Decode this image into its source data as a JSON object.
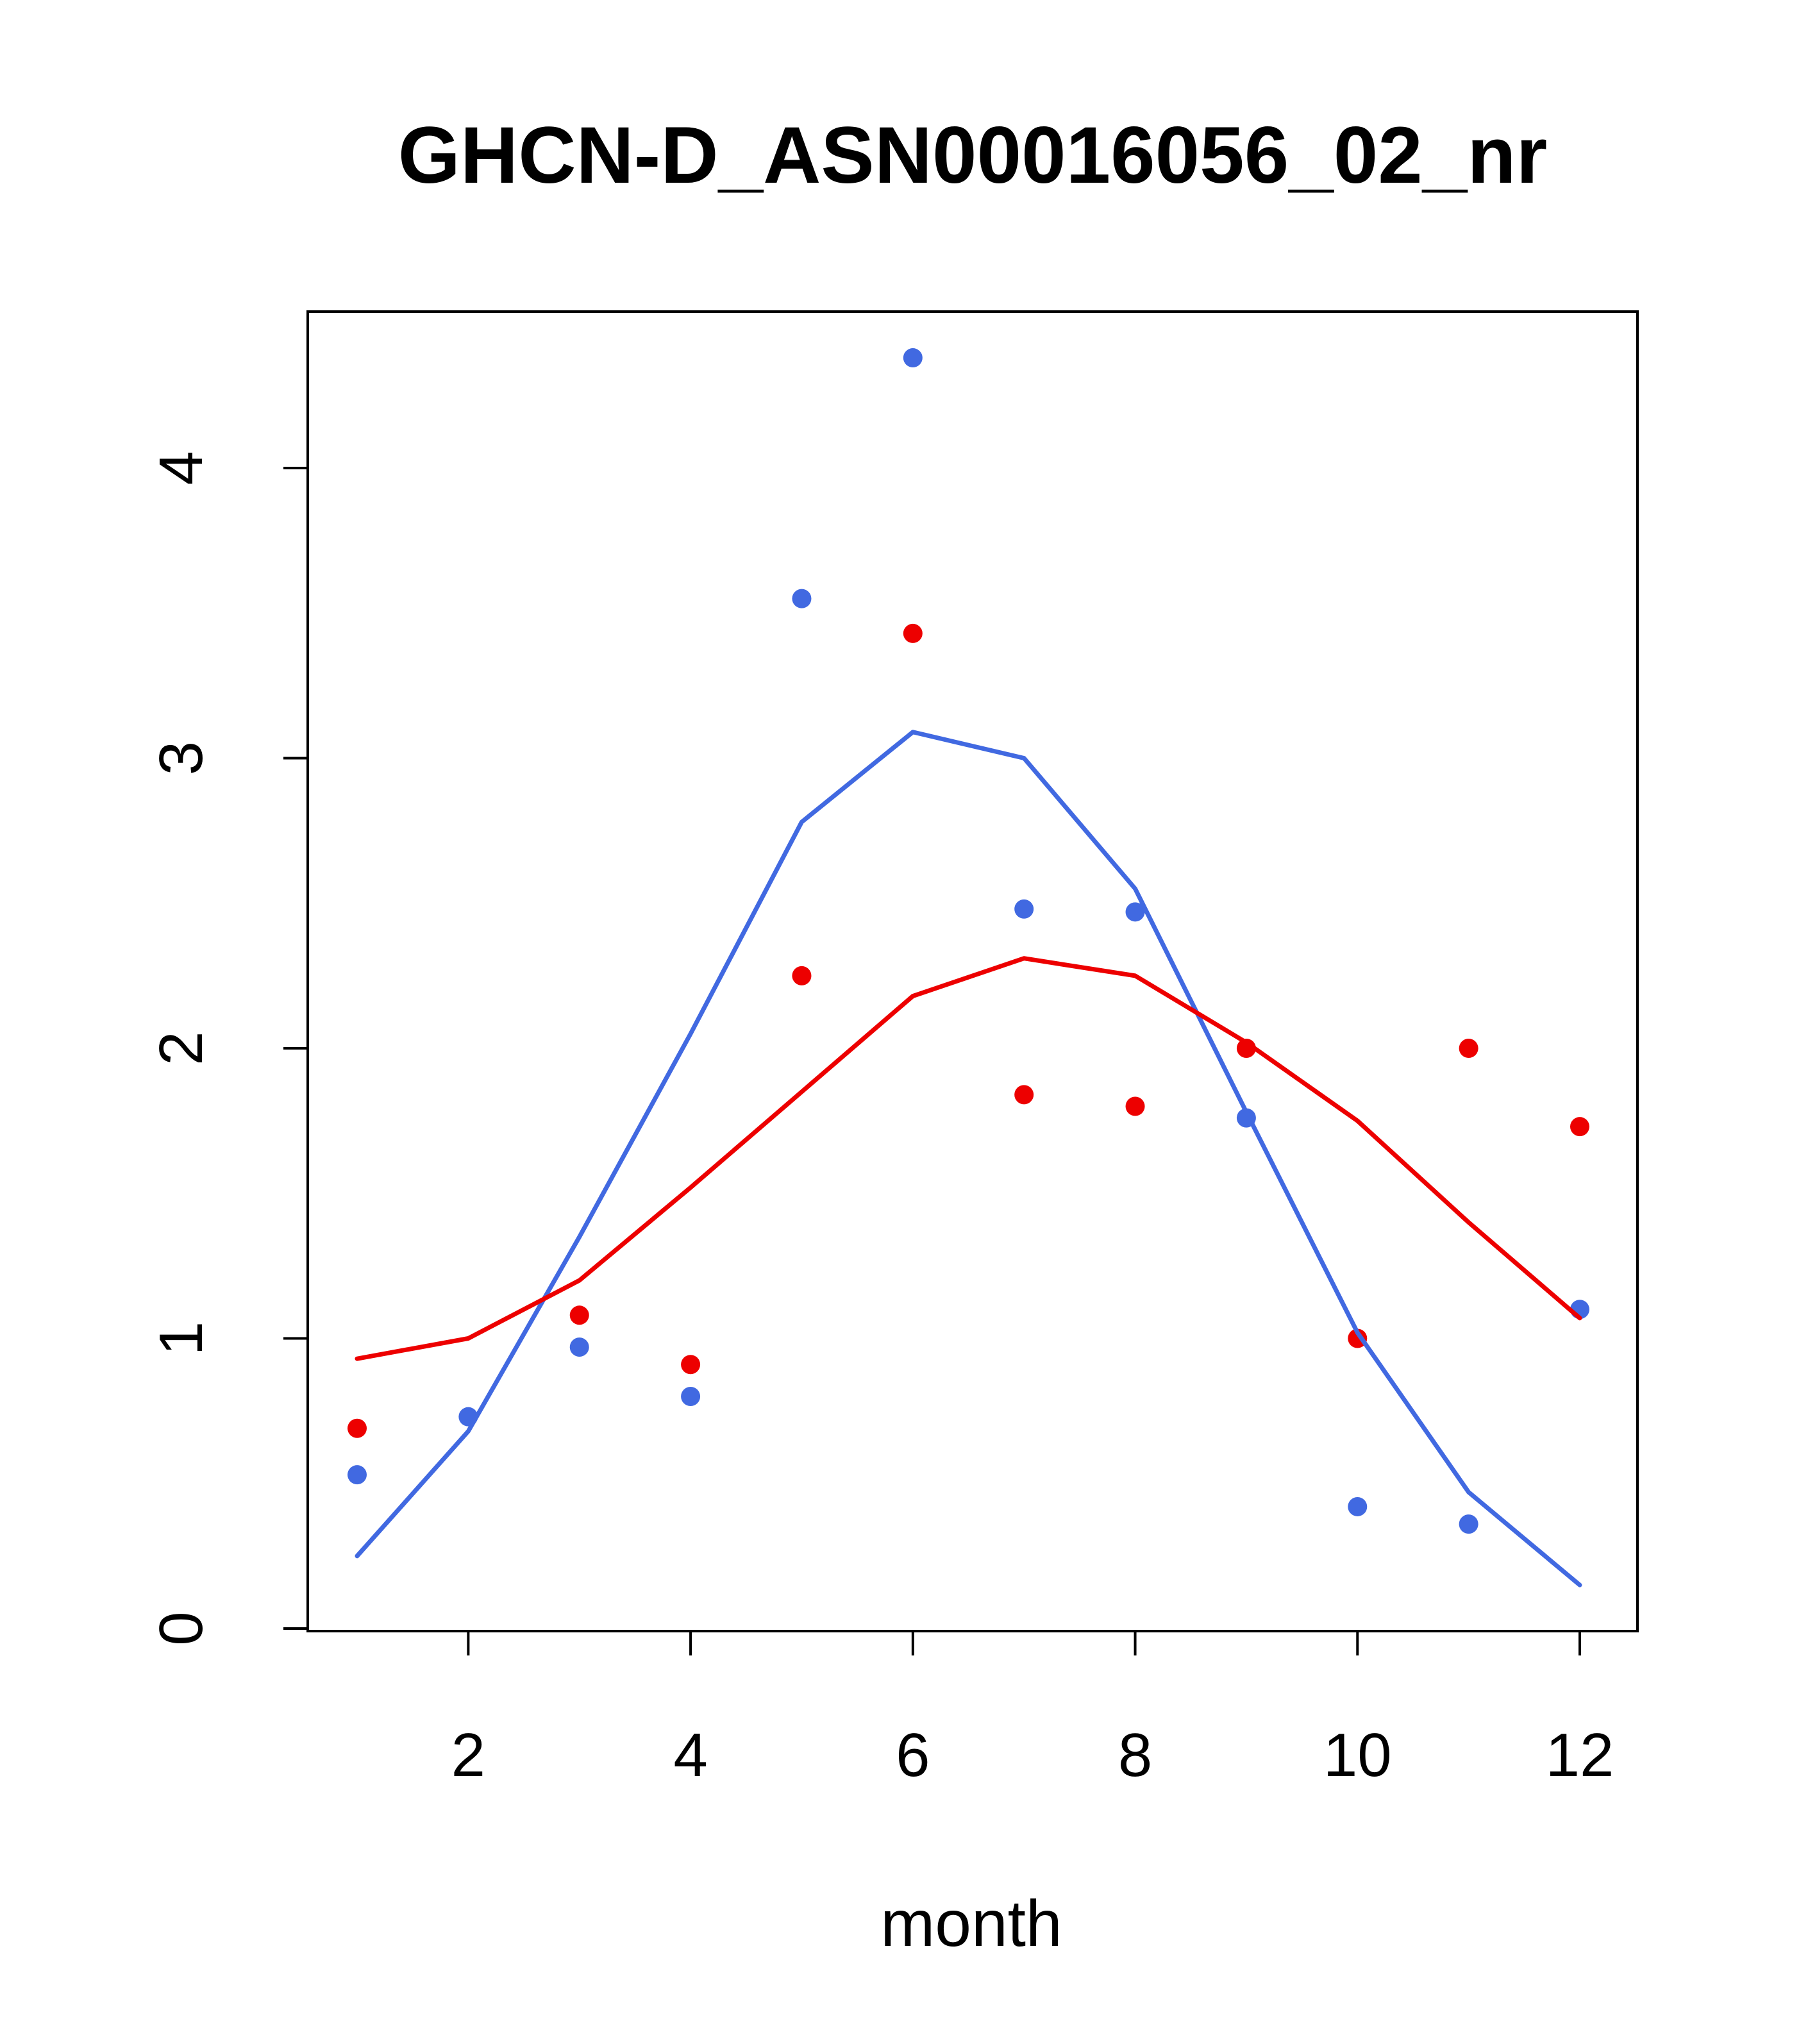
{
  "chart_data": {
    "type": "scatter",
    "title": "GHCN-D_ASN00016056_02_nr",
    "xlabel": "month",
    "ylabel": "",
    "x_ticks": [
      2,
      4,
      6,
      8,
      10,
      12
    ],
    "y_ticks": [
      0,
      1,
      2,
      3,
      4
    ],
    "xlim": [
      0.56,
      12.44
    ],
    "ylim": [
      -0.01,
      4.55
    ],
    "grid": false,
    "legend": "none",
    "colors": {
      "blue": "#4169E1",
      "red": "#ED0000",
      "axis": "#000000"
    },
    "series": [
      {
        "name": "blue-monthly-points",
        "type": "points",
        "color": "#4169E1",
        "points": [
          [
            1,
            0.53
          ],
          [
            2,
            0.73
          ],
          [
            3,
            0.97
          ],
          [
            4,
            0.8
          ],
          [
            5,
            3.55
          ],
          [
            6,
            4.38
          ],
          [
            7,
            2.48
          ],
          [
            8,
            2.47
          ],
          [
            9,
            1.76
          ],
          [
            10,
            0.42
          ],
          [
            11,
            0.36
          ],
          [
            12,
            1.1
          ]
        ]
      },
      {
        "name": "red-monthly-points",
        "type": "points",
        "color": "#ED0000",
        "points": [
          [
            1,
            0.69
          ],
          [
            3,
            1.08
          ],
          [
            4,
            0.91
          ],
          [
            5,
            2.25
          ],
          [
            6,
            3.43
          ],
          [
            7,
            1.84
          ],
          [
            8,
            1.8
          ],
          [
            9,
            2.0
          ],
          [
            10,
            1.0
          ],
          [
            11,
            2.0
          ],
          [
            12,
            1.73
          ]
        ]
      },
      {
        "name": "blue-smooth-line",
        "type": "line",
        "color": "#4169E1",
        "points": [
          [
            1,
            0.25
          ],
          [
            2,
            0.68
          ],
          [
            3,
            1.35
          ],
          [
            4,
            2.05
          ],
          [
            5,
            2.78
          ],
          [
            6,
            3.09
          ],
          [
            7,
            3.0
          ],
          [
            8,
            2.55
          ],
          [
            9,
            1.78
          ],
          [
            10,
            1.02
          ],
          [
            11,
            0.47
          ],
          [
            12,
            0.15
          ]
        ]
      },
      {
        "name": "red-smooth-line",
        "type": "line",
        "color": "#ED0000",
        "points": [
          [
            1,
            0.93
          ],
          [
            2,
            1.0
          ],
          [
            3,
            1.2
          ],
          [
            4,
            1.52
          ],
          [
            5,
            1.85
          ],
          [
            6,
            2.18
          ],
          [
            7,
            2.31
          ],
          [
            8,
            2.25
          ],
          [
            9,
            2.02
          ],
          [
            10,
            1.75
          ],
          [
            11,
            1.4
          ],
          [
            12,
            1.07
          ]
        ]
      }
    ]
  }
}
